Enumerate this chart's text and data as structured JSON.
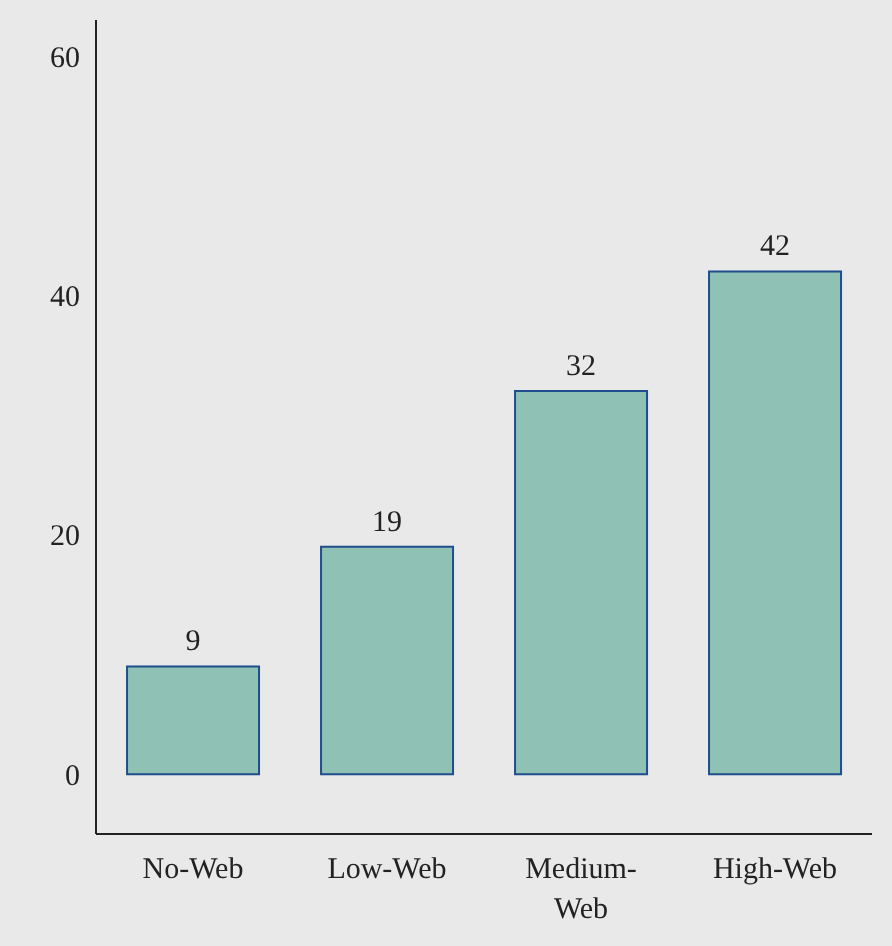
{
  "chart_data": {
    "type": "bar",
    "categories": [
      "No-Web",
      "Low-Web",
      "Medium-Web",
      "High-Web"
    ],
    "values": [
      9,
      19,
      32,
      42
    ],
    "color": "#8fc1b5",
    "data_labels": true,
    "ylim": [
      -5,
      63
    ],
    "yticks": [
      0,
      20,
      40,
      60
    ],
    "grid": false,
    "legend": false
  }
}
